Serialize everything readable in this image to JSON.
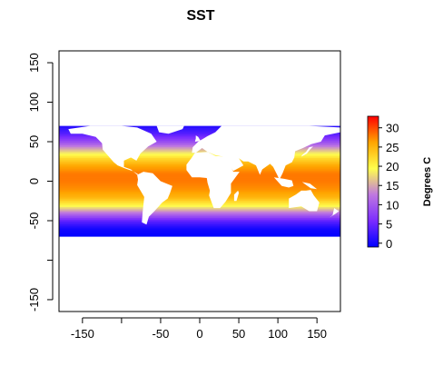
{
  "chart_data": {
    "type": "heatmap",
    "title": "SST",
    "xlabel": "",
    "ylabel": "",
    "xlim": [
      -180,
      180
    ],
    "ylim": [
      -165,
      165
    ],
    "x_ticks": [
      -150,
      -100,
      -50,
      0,
      50,
      100,
      150
    ],
    "x_tick_labels": [
      "-150",
      "",
      "-50",
      "0",
      "50",
      "100",
      "150"
    ],
    "y_ticks": [
      -150,
      -100,
      -50,
      0,
      50,
      100,
      150
    ],
    "y_tick_labels": [
      "-150",
      "",
      "-50",
      "0",
      "50",
      "100",
      "150"
    ],
    "data_lat_range": [
      -70,
      70
    ],
    "data_lon_range": [
      -180,
      180
    ],
    "colorbar": {
      "title": "Degrees C",
      "min": -1,
      "max": 33,
      "ticks": [
        0,
        5,
        10,
        15,
        20,
        25,
        30
      ],
      "colors": [
        "#0000ff",
        "#7b2cff",
        "#bf78e0",
        "#ffff4d",
        "#ffa500",
        "#ff0000"
      ]
    },
    "sst_by_latitude": {
      "lat": [
        -70,
        -60,
        -50,
        -40,
        -30,
        -20,
        -10,
        0,
        10,
        20,
        30,
        40,
        50,
        60,
        70
      ],
      "value": [
        -1,
        0,
        4,
        12,
        20,
        25,
        27,
        28,
        28,
        26,
        22,
        16,
        9,
        4,
        1
      ]
    }
  }
}
